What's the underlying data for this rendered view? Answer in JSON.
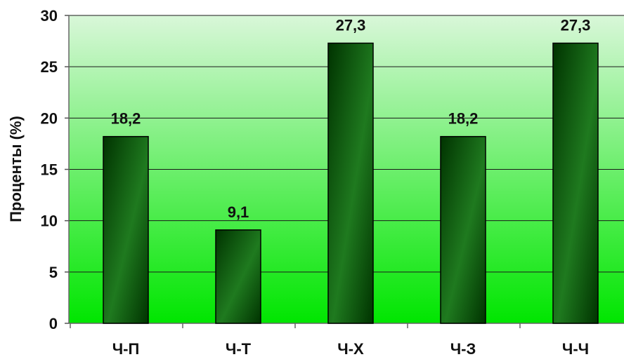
{
  "chart_data": {
    "type": "bar",
    "categories": [
      "Ч-П",
      "Ч-Т",
      "Ч-Х",
      "Ч-З",
      "Ч-Ч"
    ],
    "values": [
      18.2,
      9.1,
      27.3,
      18.2,
      27.3
    ],
    "data_labels": [
      "18,2",
      "9,1",
      "27,3",
      "18,2",
      "27,3"
    ],
    "ylabel": "Проценты (%)",
    "ylim": [
      0,
      30
    ],
    "yticks": [
      0,
      5,
      10,
      15,
      20,
      25,
      30
    ],
    "grid": true,
    "colors": {
      "bar_dark": "#003300",
      "bar_mid": "#1f7a1f",
      "plot_top": "#d9f7d9",
      "plot_bottom": "#00e600",
      "grid": "#1a1a1a"
    }
  }
}
